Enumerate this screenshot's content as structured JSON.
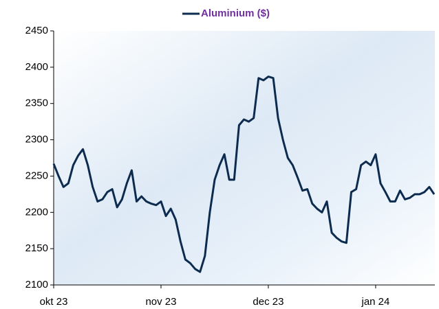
{
  "chart_data": {
    "type": "line",
    "legend_position": "top",
    "categories": [
      "okt 23",
      null,
      null,
      null,
      null,
      null,
      null,
      null,
      null,
      null,
      null,
      null,
      null,
      null,
      null,
      null,
      null,
      null,
      null,
      null,
      null,
      null,
      "nov 23",
      null,
      null,
      null,
      null,
      null,
      null,
      null,
      null,
      null,
      null,
      null,
      null,
      null,
      null,
      null,
      null,
      null,
      null,
      null,
      null,
      null,
      "dec 23",
      null,
      null,
      null,
      null,
      null,
      null,
      null,
      null,
      null,
      null,
      null,
      null,
      null,
      null,
      null,
      null,
      null,
      null,
      null,
      null,
      null,
      "jan 24",
      null,
      null,
      null,
      null,
      null,
      null,
      null,
      null,
      null,
      null,
      null,
      null
    ],
    "series": [
      {
        "name": "Aluminium ($)",
        "color": "#0d2b4e",
        "legend_color": "#7030a0",
        "values": [
          2267,
          2250,
          2235,
          2240,
          2265,
          2278,
          2287,
          2265,
          2235,
          2215,
          2218,
          2228,
          2232,
          2207,
          2218,
          2240,
          2258,
          2215,
          2222,
          2215,
          2212,
          2210,
          2215,
          2195,
          2205,
          2190,
          2160,
          2135,
          2130,
          2122,
          2118,
          2140,
          2200,
          2245,
          2265,
          2280,
          2245,
          2245,
          2320,
          2328,
          2325,
          2330,
          2385,
          2382,
          2387,
          2385,
          2330,
          2300,
          2275,
          2265,
          2248,
          2230,
          2232,
          2212,
          2205,
          2200,
          2215,
          2172,
          2165,
          2160,
          2158,
          2228,
          2232,
          2265,
          2270,
          2265,
          2280,
          2240,
          2228,
          2215,
          2215,
          2230,
          2218,
          2220,
          2225,
          2225,
          2228,
          2235,
          2225
        ]
      }
    ],
    "ylim": [
      2100,
      2450
    ],
    "yticks": [
      2100,
      2150,
      2200,
      2250,
      2300,
      2350,
      2400,
      2450
    ]
  }
}
